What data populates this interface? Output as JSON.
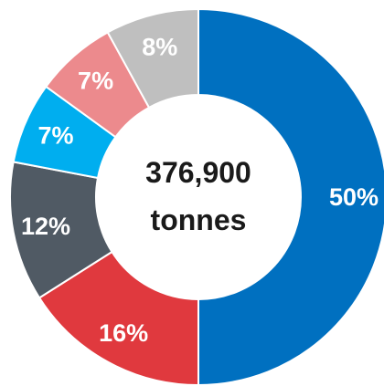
{
  "chart_data": {
    "type": "pie",
    "variant": "donut",
    "center_label": {
      "value": "376,900",
      "unit": "tonnes"
    },
    "slices": [
      {
        "label": "50%",
        "value": 50,
        "color": "#0070C0"
      },
      {
        "label": "16%",
        "value": 16,
        "color": "#E0393E"
      },
      {
        "label": "12%",
        "value": 12,
        "color": "#505A64"
      },
      {
        "label": "7%",
        "value": 7,
        "color": "#00AEEF"
      },
      {
        "label": "7%",
        "value": 7,
        "color": "#EC8A8D"
      },
      {
        "label": "8%",
        "value": 8,
        "color": "#BFBFBF"
      }
    ],
    "start_angle": "12 o'clock",
    "direction": "clockwise"
  }
}
